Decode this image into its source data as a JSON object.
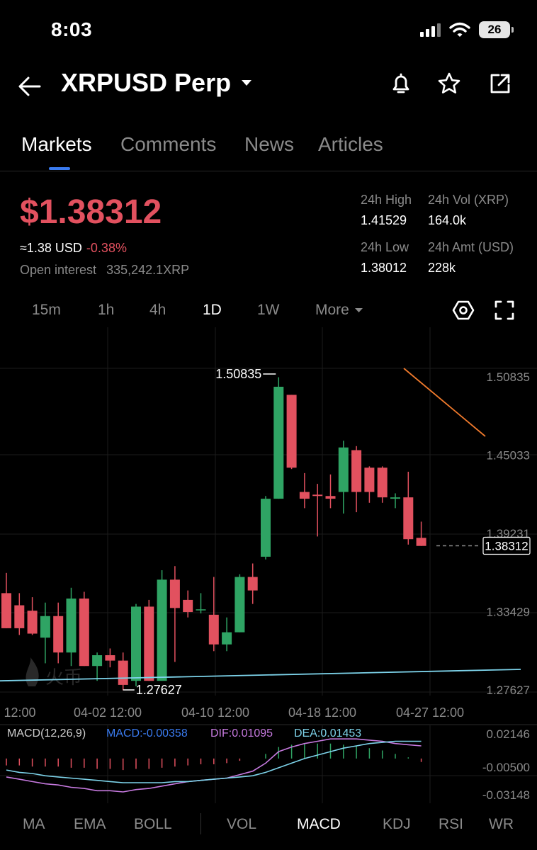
{
  "status": {
    "time": "8:03",
    "battery": "26"
  },
  "header": {
    "title": "XRPUSD Perp"
  },
  "tabs": [
    "Markets",
    "Comments",
    "News",
    "Articles"
  ],
  "ticker": {
    "price": "$1.38312",
    "approx": "≈1.38 USD",
    "change": "-0.38%",
    "open_interest_label": "Open interest",
    "open_interest_value": "335,242.1XRP",
    "stats": {
      "high_label": "24h High",
      "high_value": "1.41529",
      "vol_label": "24h Vol (XRP)",
      "vol_value": "164.0k",
      "low_label": "24h Low",
      "low_value": "1.38012",
      "amt_label": "24h Amt (USD)",
      "amt_value": "228k"
    }
  },
  "intervals": [
    "15m",
    "1h",
    "4h",
    "1D",
    "1W",
    "More"
  ],
  "indicator_tabs": [
    "MA",
    "EMA",
    "BOLL",
    "VOL",
    "MACD",
    "KDJ",
    "RSI",
    "WR"
  ],
  "macd": {
    "label": "MACD(12,26,9)",
    "macd": "MACD:-0.00358",
    "dif": "DIF:0.01095",
    "dea": "DEA:0.01453",
    "axis": [
      "0.02146",
      "-0.00500",
      "-0.03148"
    ]
  },
  "colors": {
    "up": "#2fa464",
    "down": "#e2515f",
    "accent": "#3a7bf0",
    "dif": "#c77ae0",
    "dea": "#7dd3ea",
    "trend": "#f07a2c"
  },
  "chart_data": {
    "type": "candlestick",
    "y_ticks": [
      1.50835,
      1.45033,
      1.39231,
      1.33429,
      1.27627
    ],
    "x_labels": [
      "12:00",
      "04-02 12:00",
      "04-10 12:00",
      "04-18 12:00",
      "04-27 12:00"
    ],
    "high_label": "1.50835",
    "low_label": "1.27627",
    "last_price": "1.38312",
    "candles": [
      {
        "o": 1.348,
        "h": 1.363,
        "l": 1.322,
        "c": 1.322
      },
      {
        "o": 1.339,
        "h": 1.348,
        "l": 1.317,
        "c": 1.322
      },
      {
        "o": 1.335,
        "h": 1.345,
        "l": 1.317,
        "c": 1.318
      },
      {
        "o": 1.315,
        "h": 1.341,
        "l": 1.296,
        "c": 1.331
      },
      {
        "o": 1.331,
        "h": 1.341,
        "l": 1.296,
        "c": 1.304
      },
      {
        "o": 1.304,
        "h": 1.352,
        "l": 1.294,
        "c": 1.344
      },
      {
        "o": 1.344,
        "h": 1.349,
        "l": 1.294,
        "c": 1.294
      },
      {
        "o": 1.294,
        "h": 1.304,
        "l": 1.283,
        "c": 1.302
      },
      {
        "o": 1.302,
        "h": 1.307,
        "l": 1.293,
        "c": 1.298
      },
      {
        "o": 1.298,
        "h": 1.304,
        "l": 1.276,
        "c": 1.28
      },
      {
        "o": 1.283,
        "h": 1.34,
        "l": 1.279,
        "c": 1.338
      },
      {
        "o": 1.338,
        "h": 1.343,
        "l": 1.283,
        "c": 1.283
      },
      {
        "o": 1.283,
        "h": 1.365,
        "l": 1.283,
        "c": 1.358
      },
      {
        "o": 1.358,
        "h": 1.368,
        "l": 1.297,
        "c": 1.337
      },
      {
        "o": 1.343,
        "h": 1.35,
        "l": 1.33,
        "c": 1.334
      },
      {
        "o": 1.336,
        "h": 1.348,
        "l": 1.333,
        "c": 1.336
      },
      {
        "o": 1.332,
        "h": 1.36,
        "l": 1.305,
        "c": 1.31
      },
      {
        "o": 1.31,
        "h": 1.33,
        "l": 1.305,
        "c": 1.319
      },
      {
        "o": 1.319,
        "h": 1.362,
        "l": 1.319,
        "c": 1.36
      },
      {
        "o": 1.36,
        "h": 1.37,
        "l": 1.34,
        "c": 1.35
      },
      {
        "o": 1.375,
        "h": 1.42,
        "l": 1.373,
        "c": 1.418
      },
      {
        "o": 1.418,
        "h": 1.508,
        "l": 1.418,
        "c": 1.501
      },
      {
        "o": 1.495,
        "h": 1.495,
        "l": 1.44,
        "c": 1.441
      },
      {
        "o": 1.423,
        "h": 1.437,
        "l": 1.411,
        "c": 1.418
      },
      {
        "o": 1.421,
        "h": 1.429,
        "l": 1.39,
        "c": 1.42
      },
      {
        "o": 1.42,
        "h": 1.436,
        "l": 1.411,
        "c": 1.418
      },
      {
        "o": 1.423,
        "h": 1.461,
        "l": 1.407,
        "c": 1.456
      },
      {
        "o": 1.454,
        "h": 1.457,
        "l": 1.408,
        "c": 1.423
      },
      {
        "o": 1.441,
        "h": 1.442,
        "l": 1.415,
        "c": 1.423
      },
      {
        "o": 1.441,
        "h": 1.442,
        "l": 1.415,
        "c": 1.419
      },
      {
        "o": 1.418,
        "h": 1.422,
        "l": 1.411,
        "c": 1.419
      },
      {
        "o": 1.419,
        "h": 1.438,
        "l": 1.384,
        "c": 1.388
      },
      {
        "o": 1.389,
        "h": 1.401,
        "l": 1.383,
        "c": 1.383
      }
    ],
    "macd_hist": [
      -0.006,
      -0.006,
      -0.007,
      -0.007,
      -0.007,
      -0.008,
      -0.008,
      -0.009,
      -0.009,
      -0.01,
      -0.009,
      -0.009,
      -0.008,
      -0.007,
      -0.006,
      -0.005,
      -0.005,
      -0.004,
      -0.002,
      0.0,
      0.004,
      0.01,
      0.012,
      0.013,
      0.013,
      0.013,
      0.012,
      0.011,
      0.009,
      0.007,
      0.004,
      0.001,
      -0.003
    ],
    "dif": [
      -0.016,
      -0.018,
      -0.02,
      -0.022,
      -0.023,
      -0.025,
      -0.026,
      -0.028,
      -0.028,
      -0.029,
      -0.027,
      -0.026,
      -0.024,
      -0.022,
      -0.02,
      -0.019,
      -0.018,
      -0.017,
      -0.014,
      -0.011,
      -0.004,
      0.006,
      0.01,
      0.013,
      0.015,
      0.017,
      0.017,
      0.017,
      0.016,
      0.015,
      0.013,
      0.012,
      0.011
    ],
    "dea": [
      -0.01,
      -0.012,
      -0.013,
      -0.015,
      -0.016,
      -0.017,
      -0.018,
      -0.019,
      -0.02,
      -0.021,
      -0.021,
      -0.021,
      -0.021,
      -0.02,
      -0.02,
      -0.019,
      -0.018,
      -0.017,
      -0.016,
      -0.015,
      -0.012,
      -0.008,
      -0.004,
      0.0,
      0.003,
      0.006,
      0.009,
      0.011,
      0.013,
      0.014,
      0.015,
      0.015,
      0.015
    ]
  }
}
